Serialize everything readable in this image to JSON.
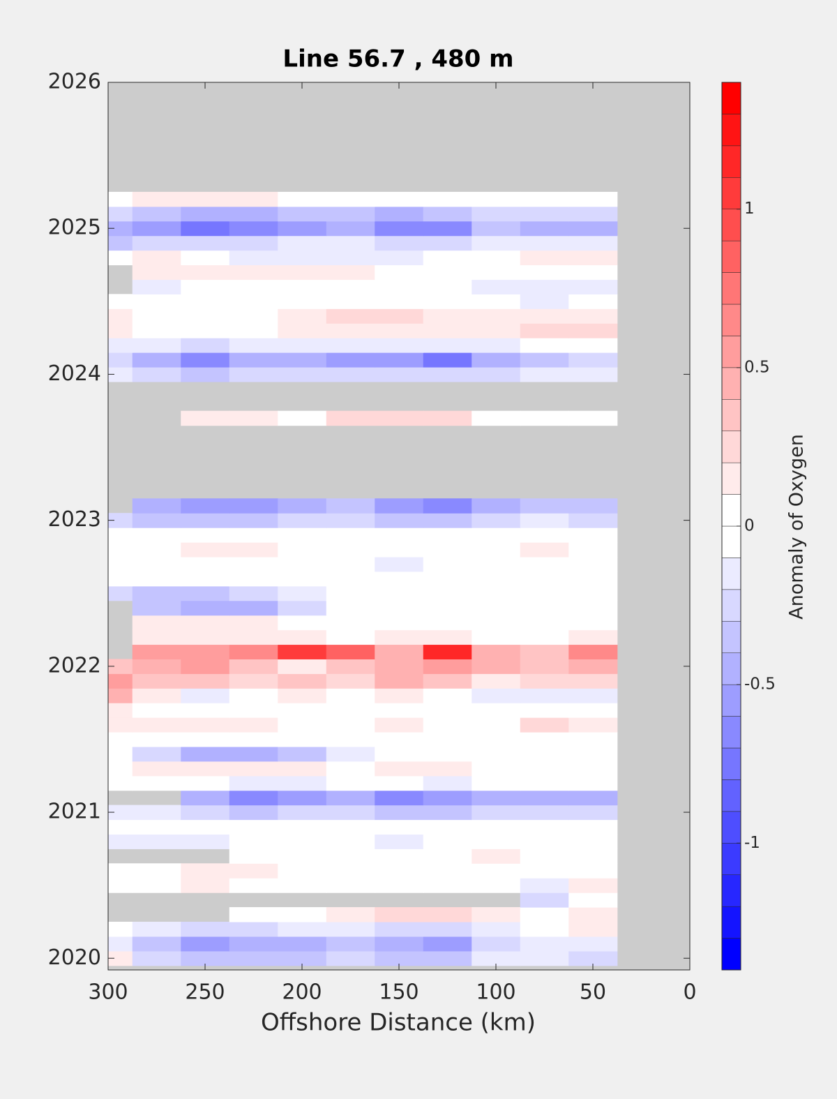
{
  "chart_data": {
    "type": "contour",
    "title": "Line 56.7 , 480 m",
    "xlabel": "Offshore Distance (km)",
    "colorbar_label": "Anomaly of Oxygen",
    "xlim": [
      300,
      0
    ],
    "ylim": [
      2019.92,
      2026
    ],
    "xticks": [
      300,
      250,
      200,
      150,
      100,
      50,
      0
    ],
    "yticks": [
      2020,
      2021,
      2022,
      2023,
      2024,
      2025,
      2026
    ],
    "clim": [
      -1.4,
      1.4
    ],
    "cticks": [
      -1,
      -0.5,
      0,
      0.5,
      1
    ],
    "level_step": 0.1,
    "missing_color": "#cccccc",
    "positive_color": "#ff0000",
    "negative_color": "#0000ff",
    "x": [
      300,
      275,
      250,
      225,
      200,
      175,
      150,
      125,
      100,
      75,
      50
    ],
    "y": [
      2020.0,
      2020.1,
      2020.2,
      2020.3,
      2020.4,
      2020.5,
      2020.6,
      2020.7,
      2020.8,
      2020.9,
      2021.0,
      2021.1,
      2021.2,
      2021.3,
      2021.4,
      2021.5,
      2021.6,
      2021.7,
      2021.8,
      2021.9,
      2022.0,
      2022.1,
      2022.2,
      2022.3,
      2022.4,
      2022.5,
      2022.6,
      2022.7,
      2022.8,
      2022.9,
      2023.0,
      2023.1,
      2023.2,
      2023.3,
      2023.4,
      2023.5,
      2023.6,
      2023.7,
      2023.8,
      2023.9,
      2024.0,
      2024.1,
      2024.2,
      2024.3,
      2024.4,
      2024.5,
      2024.6,
      2024.7,
      2024.8,
      2024.9,
      2025.0,
      2025.1,
      2025.2
    ],
    "z": [
      [
        0.15,
        -0.2,
        -0.3,
        -0.3,
        -0.3,
        -0.2,
        -0.3,
        -0.3,
        -0.1,
        -0.1,
        -0.2
      ],
      [
        -0.1,
        -0.3,
        -0.5,
        -0.4,
        -0.4,
        -0.3,
        -0.4,
        -0.5,
        -0.2,
        -0.1,
        -0.1
      ],
      [
        0,
        -0.1,
        -0.2,
        -0.2,
        -0.1,
        -0.1,
        -0.2,
        -0.2,
        -0.1,
        0,
        0.1
      ],
      [
        null,
        null,
        null,
        0,
        0,
        0.1,
        0.2,
        0.2,
        0.1,
        0,
        0.1
      ],
      [
        null,
        null,
        null,
        null,
        null,
        null,
        null,
        null,
        null,
        -0.2,
        0
      ],
      [
        0,
        0,
        0.1,
        0,
        0,
        0,
        0,
        0,
        0,
        -0.1,
        0.1
      ],
      [
        0,
        0,
        0.1,
        0.15,
        0,
        0,
        0,
        0,
        0,
        0,
        0
      ],
      [
        null,
        null,
        null,
        0,
        0,
        0,
        0,
        0,
        0.1,
        0,
        0
      ],
      [
        -0.15,
        -0.15,
        -0.1,
        0,
        0,
        0,
        -0.1,
        0,
        0,
        0,
        0
      ],
      [
        0,
        0,
        0,
        0,
        0,
        0,
        0,
        0,
        0,
        0,
        0
      ],
      [
        -0.1,
        -0.1,
        -0.2,
        -0.3,
        -0.2,
        -0.2,
        -0.3,
        -0.3,
        -0.2,
        -0.2,
        -0.2
      ],
      [
        null,
        null,
        -0.4,
        -0.6,
        -0.5,
        -0.4,
        -0.6,
        -0.5,
        -0.4,
        -0.4,
        -0.4
      ],
      [
        0,
        0,
        0,
        -0.1,
        -0.1,
        0,
        0,
        -0.1,
        0,
        0,
        0
      ],
      [
        0,
        0.1,
        0.1,
        0.1,
        0.1,
        0,
        0.1,
        0.15,
        0,
        0,
        0
      ],
      [
        0,
        -0.2,
        -0.4,
        -0.4,
        -0.3,
        -0.1,
        0,
        0,
        0,
        0,
        0
      ],
      [
        0,
        0,
        0,
        0,
        0,
        0,
        0,
        0,
        0,
        0,
        0
      ],
      [
        0.1,
        0.15,
        0.15,
        0.1,
        0,
        0,
        0.1,
        0,
        0,
        0.2,
        0.1
      ],
      [
        0.1,
        0,
        0,
        0,
        0,
        0,
        0,
        0,
        0,
        0,
        0
      ],
      [
        0.4,
        0.1,
        -0.1,
        0,
        0.1,
        0,
        0.1,
        0,
        -0.1,
        -0.1,
        -0.1
      ],
      [
        0.5,
        0.3,
        0.3,
        0.2,
        0.3,
        0.2,
        0.4,
        0.3,
        0.1,
        0.2,
        0.2
      ],
      [
        0.3,
        0.4,
        0.5,
        0.3,
        0.1,
        0.3,
        0.4,
        0.5,
        0.4,
        0.3,
        0.4
      ],
      [
        null,
        0.5,
        0.5,
        0.6,
        1.0,
        0.8,
        0.4,
        1.1,
        0.4,
        0.3,
        0.6
      ],
      [
        null,
        0.1,
        0.1,
        0.1,
        0.1,
        0,
        0.1,
        0.1,
        0,
        0,
        0.1
      ],
      [
        null,
        0.1,
        0.1,
        0.1,
        0,
        0,
        0,
        0,
        0,
        0,
        0
      ],
      [
        null,
        -0.3,
        -0.4,
        -0.4,
        -0.2,
        0,
        0,
        0,
        0,
        0,
        0
      ],
      [
        -0.2,
        -0.3,
        -0.3,
        -0.2,
        -0.1,
        0,
        0,
        0,
        0,
        0,
        0
      ],
      [
        0,
        0,
        0,
        0,
        0,
        0,
        0,
        0,
        0,
        0,
        0
      ],
      [
        0,
        0,
        0,
        0,
        0,
        0,
        -0.1,
        0,
        0,
        0,
        0
      ],
      [
        0,
        0,
        0.1,
        0.1,
        0,
        0,
        0,
        0,
        0,
        0.1,
        0
      ],
      [
        0,
        0,
        0,
        0,
        0,
        0,
        0,
        0,
        0,
        0,
        0
      ],
      [
        -0.2,
        -0.3,
        -0.3,
        -0.3,
        -0.2,
        -0.2,
        -0.3,
        -0.3,
        -0.2,
        -0.1,
        -0.2
      ],
      [
        null,
        -0.4,
        -0.5,
        -0.5,
        -0.4,
        -0.3,
        -0.5,
        -0.6,
        -0.4,
        -0.3,
        -0.3
      ],
      [
        null,
        null,
        null,
        null,
        null,
        null,
        null,
        null,
        null,
        null,
        null
      ],
      [
        null,
        null,
        null,
        null,
        null,
        null,
        null,
        null,
        null,
        null,
        null
      ],
      [
        null,
        null,
        null,
        null,
        null,
        null,
        null,
        null,
        null,
        null,
        null
      ],
      [
        null,
        null,
        null,
        null,
        null,
        null,
        null,
        null,
        null,
        null,
        null
      ],
      [
        null,
        null,
        null,
        null,
        null,
        null,
        null,
        null,
        null,
        null,
        null
      ],
      [
        null,
        null,
        0.1,
        0.1,
        0,
        0.2,
        0.25,
        0.2,
        0,
        0,
        0
      ],
      [
        null,
        null,
        null,
        null,
        null,
        null,
        null,
        null,
        null,
        null,
        null
      ],
      [
        null,
        null,
        null,
        null,
        null,
        null,
        null,
        null,
        null,
        null,
        null
      ],
      [
        -0.1,
        -0.2,
        -0.3,
        -0.2,
        -0.2,
        -0.2,
        -0.2,
        -0.2,
        -0.2,
        -0.1,
        -0.1
      ],
      [
        -0.2,
        -0.4,
        -0.6,
        -0.4,
        -0.4,
        -0.5,
        -0.5,
        -0.7,
        -0.4,
        -0.3,
        -0.2
      ],
      [
        -0.1,
        -0.1,
        -0.2,
        -0.1,
        -0.1,
        -0.1,
        -0.1,
        -0.1,
        -0.1,
        0,
        0
      ],
      [
        0.1,
        0,
        0,
        0,
        0.1,
        0.1,
        0.1,
        0.1,
        0.1,
        0.2,
        0.25
      ],
      [
        0.15,
        0,
        0,
        0,
        0.15,
        0.2,
        0.2,
        0.15,
        0.1,
        0.1,
        0.1
      ],
      [
        0,
        0,
        0,
        0,
        0,
        0,
        0,
        0,
        0,
        -0.1,
        0
      ],
      [
        null,
        -0.1,
        0,
        0,
        0,
        0,
        0,
        0,
        -0.1,
        -0.15,
        -0.1
      ],
      [
        null,
        0.15,
        0.15,
        0.15,
        0.1,
        0.1,
        0,
        0,
        0,
        0,
        0
      ],
      [
        0,
        0.1,
        0,
        -0.1,
        -0.15,
        -0.15,
        -0.1,
        0,
        0,
        0.1,
        0.1
      ],
      [
        -0.3,
        -0.2,
        -0.2,
        -0.2,
        -0.1,
        -0.1,
        -0.2,
        -0.2,
        -0.1,
        -0.1,
        -0.1
      ],
      [
        -0.4,
        -0.5,
        -0.7,
        -0.6,
        -0.5,
        -0.4,
        -0.6,
        -0.6,
        -0.3,
        -0.4,
        -0.4
      ],
      [
        -0.2,
        -0.3,
        -0.4,
        -0.4,
        -0.3,
        -0.3,
        -0.4,
        -0.3,
        -0.2,
        -0.2,
        -0.2
      ],
      [
        0,
        0.1,
        0.1,
        0.1,
        0,
        0,
        0,
        0,
        0,
        0,
        0
      ]
    ]
  }
}
